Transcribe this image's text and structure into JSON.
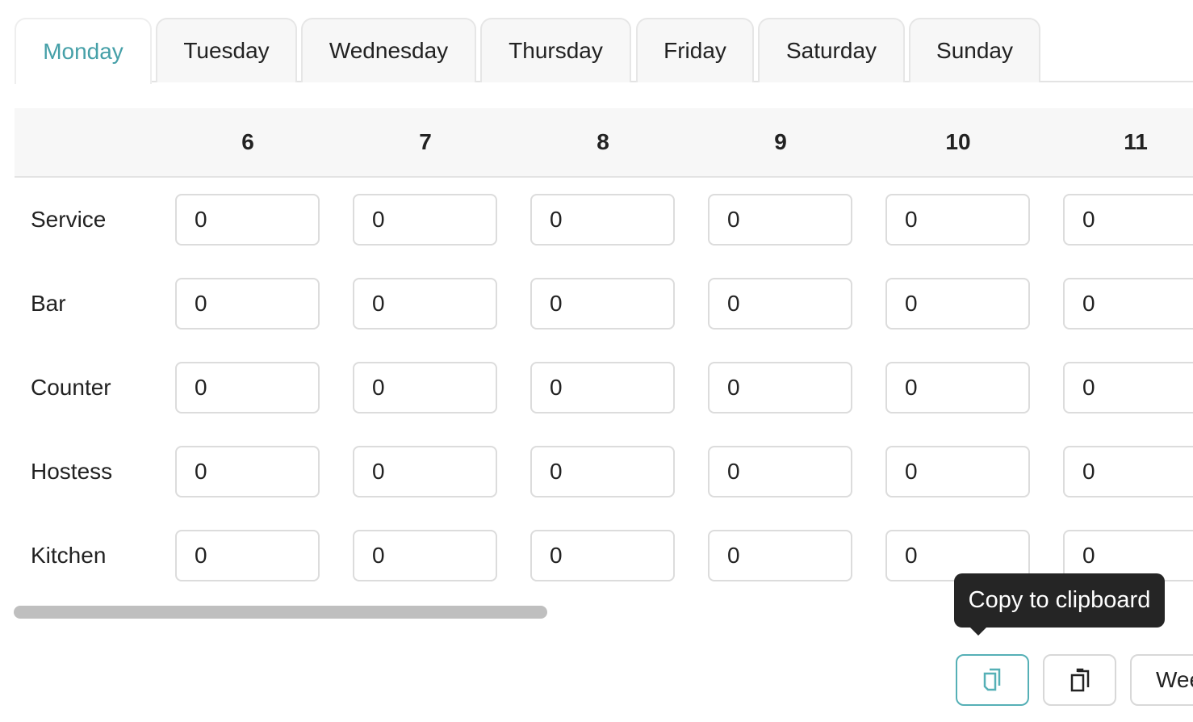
{
  "tabs": [
    {
      "label": "Monday",
      "active": true
    },
    {
      "label": "Tuesday"
    },
    {
      "label": "Wednesday"
    },
    {
      "label": "Thursday"
    },
    {
      "label": "Friday"
    },
    {
      "label": "Saturday"
    },
    {
      "label": "Sunday"
    }
  ],
  "table": {
    "hours": [
      "6",
      "7",
      "8",
      "9",
      "10",
      "11"
    ],
    "rows": [
      {
        "label": "Service",
        "values": [
          "0",
          "0",
          "0",
          "0",
          "0",
          "0"
        ]
      },
      {
        "label": "Bar",
        "values": [
          "0",
          "0",
          "0",
          "0",
          "0",
          "0"
        ]
      },
      {
        "label": "Counter",
        "values": [
          "0",
          "0",
          "0",
          "0",
          "0",
          "0"
        ]
      },
      {
        "label": "Hostess",
        "values": [
          "0",
          "0",
          "0",
          "0",
          "0",
          "0"
        ]
      },
      {
        "label": "Kitchen",
        "values": [
          "0",
          "0",
          "0",
          "0",
          "0",
          "0"
        ]
      }
    ]
  },
  "tooltip": "Copy to clipboard",
  "buttons": {
    "copy_icon": "copy-icon",
    "paste_icon": "paste-clipboard-icon",
    "week_label": "Week"
  },
  "colors": {
    "accent": "#46a0a8"
  }
}
